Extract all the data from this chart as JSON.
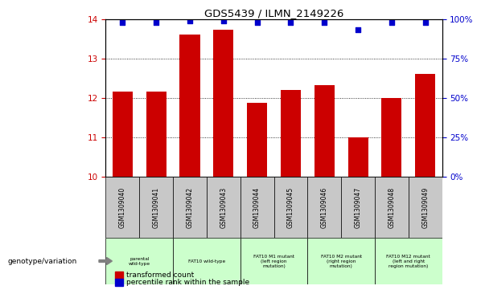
{
  "title": "GDS5439 / ILMN_2149226",
  "samples": [
    "GSM1309040",
    "GSM1309041",
    "GSM1309042",
    "GSM1309043",
    "GSM1309044",
    "GSM1309045",
    "GSM1309046",
    "GSM1309047",
    "GSM1309048",
    "GSM1309049"
  ],
  "transformed_counts": [
    12.15,
    12.15,
    13.6,
    13.72,
    11.88,
    12.2,
    12.32,
    11.0,
    12.0,
    12.6
  ],
  "percentile_ranks": [
    98,
    98,
    99,
    99,
    98,
    98,
    98,
    93,
    98,
    98
  ],
  "bar_color": "#cc0000",
  "dot_color": "#0000cc",
  "ylim_left": [
    10,
    14
  ],
  "ylim_right": [
    0,
    100
  ],
  "yticks_left": [
    10,
    11,
    12,
    13,
    14
  ],
  "yticks_right": [
    0,
    25,
    50,
    75,
    100
  ],
  "ylabel_left_color": "#cc0000",
  "ylabel_right_color": "#0000cc",
  "genotype_groups": [
    {
      "label": "parental\nwild-type",
      "start": 0,
      "end": 2,
      "color": "#ccffcc"
    },
    {
      "label": "FAT10 wild-type",
      "start": 2,
      "end": 4,
      "color": "#ccffcc"
    },
    {
      "label": "FAT10 M1 mutant\n(left region\nmutation)",
      "start": 4,
      "end": 6,
      "color": "#ccffcc"
    },
    {
      "label": "FAT10 M2 mutant\n(right region\nmutation)",
      "start": 6,
      "end": 8,
      "color": "#ccffcc"
    },
    {
      "label": "FAT10 M12 mutant\n(left and right\nregion mutation)",
      "start": 8,
      "end": 10,
      "color": "#ccffcc"
    }
  ],
  "legend_square_color_red": "#cc0000",
  "legend_square_color_blue": "#0000cc",
  "legend_label_red": "transformed count",
  "legend_label_blue": "percentile rank within the sample",
  "background_table": "#c8c8c8",
  "genotype_arrow_color": "#808080"
}
